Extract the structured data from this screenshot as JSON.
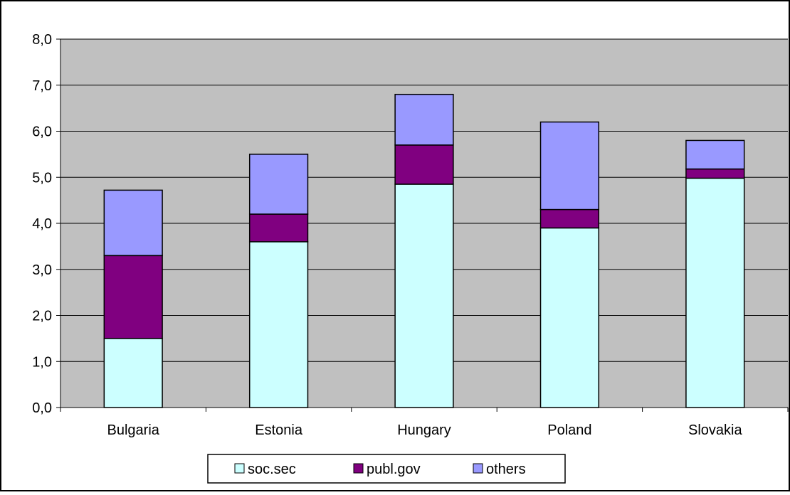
{
  "chart_data": {
    "type": "bar",
    "stacked": true,
    "categories": [
      "Bulgaria",
      "Estonia",
      "Hungary",
      "Poland",
      "Slovakia"
    ],
    "series": [
      {
        "name": "soc.sec",
        "color": "#ccffff",
        "values": [
          1.5,
          3.6,
          4.85,
          3.9,
          4.98
        ]
      },
      {
        "name": "publ.gov",
        "color": "#800080",
        "values": [
          1.8,
          0.6,
          0.85,
          0.4,
          0.2
        ]
      },
      {
        "name": "others",
        "color": "#9999ff",
        "values": [
          1.42,
          1.3,
          1.1,
          1.9,
          0.62
        ]
      }
    ],
    "ylim": [
      0,
      8
    ],
    "yticks": [
      "0,0",
      "1,0",
      "2,0",
      "3,0",
      "4,0",
      "5,0",
      "6,0",
      "7,0",
      "8,0"
    ],
    "grid": true,
    "plot_background": "#c0c0c0",
    "legend_position": "bottom"
  }
}
